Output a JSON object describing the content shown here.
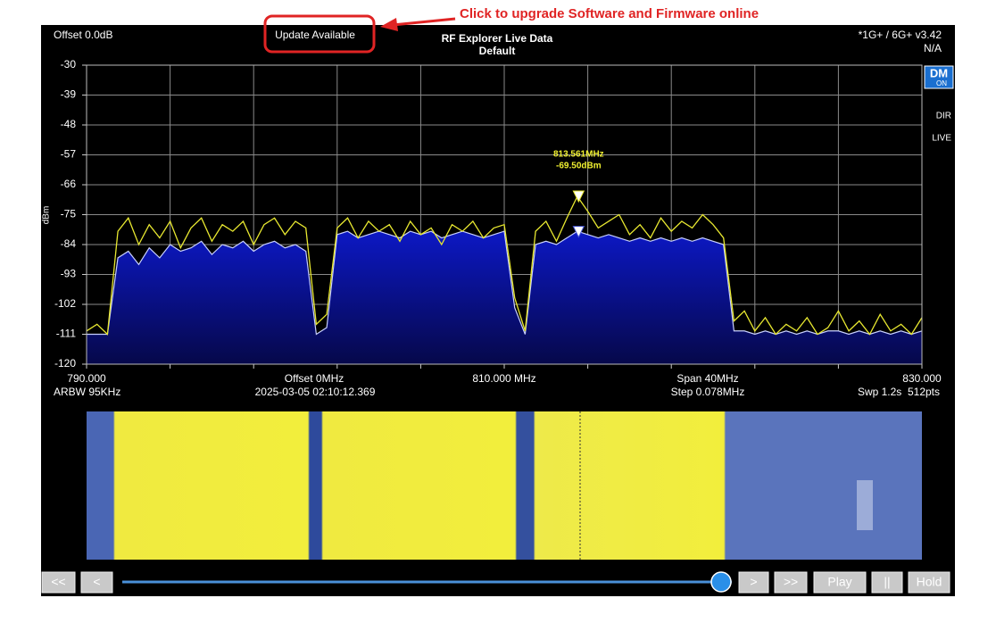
{
  "annotation": "Click to upgrade Software and Firmware online",
  "header": {
    "offset": "Offset 0.0dB",
    "update_button": "Update Available",
    "title": "RF Explorer Live Data",
    "subtitle": "Default",
    "version": "*1G+ / 6G+ v3.42",
    "status": "N/A"
  },
  "side_indicators": {
    "dm_icon": [
      "DM",
      "ON"
    ],
    "dir": "DIR",
    "live": "LIVE"
  },
  "info": {
    "center_offset": "Offset 0MHz",
    "span": "Span 40MHz",
    "rbw": "ARBW 95KHz",
    "timestamp": "2025-03-05 02:10:12.369",
    "step": "Step 0.078MHz",
    "sweep": "Swp 1.2s  512pts"
  },
  "chart_data": {
    "type": "line",
    "ylabel": "dBm",
    "xlim": [
      790,
      830
    ],
    "ylim": [
      -120,
      -30
    ],
    "yticks": [
      -30,
      -39,
      -48,
      -57,
      -66,
      -75,
      -84,
      -93,
      -102,
      -111,
      -120
    ],
    "xticks": [
      {
        "value": 790,
        "label": "790.000"
      },
      {
        "value": 810,
        "label": "810.000 MHz"
      },
      {
        "value": 830,
        "label": "830.000"
      }
    ],
    "xgrid": [
      790,
      794,
      798,
      802,
      806,
      810,
      814,
      818,
      822,
      826,
      830
    ],
    "grid": true,
    "x": [
      790,
      790.5,
      791,
      791.5,
      792,
      792.5,
      793,
      793.5,
      794,
      794.5,
      795,
      795.5,
      796,
      796.5,
      797,
      797.5,
      798,
      798.5,
      799,
      799.5,
      800,
      800.5,
      801,
      801.5,
      802,
      802.5,
      803,
      803.5,
      804,
      804.5,
      805,
      805.5,
      806,
      806.5,
      807,
      807.5,
      808,
      808.5,
      809,
      809.5,
      810,
      810.5,
      811,
      811.5,
      812,
      812.5,
      813,
      813.5,
      814,
      814.5,
      815,
      815.5,
      816,
      816.5,
      817,
      817.5,
      818,
      818.5,
      819,
      819.5,
      820,
      820.5,
      821,
      821.5,
      822,
      822.5,
      823,
      823.5,
      824,
      824.5,
      825,
      825.5,
      826,
      826.5,
      827,
      827.5,
      828,
      828.5,
      829,
      829.5,
      830
    ],
    "series": [
      {
        "kind": "area",
        "color": "#0c18c4",
        "values": [
          -111,
          -111,
          -111,
          -88,
          -86,
          -90,
          -85,
          -88,
          -84,
          -86,
          -85,
          -83,
          -87,
          -84,
          -85,
          -83,
          -86,
          -84,
          -83,
          -85,
          -84,
          -86,
          -111,
          -109,
          -81,
          -80,
          -82,
          -81,
          -80,
          -81,
          -82,
          -80,
          -81,
          -80,
          -82,
          -81,
          -80,
          -81,
          -82,
          -81,
          -80,
          -103,
          -111,
          -84,
          -83,
          -84,
          -82,
          -80,
          -81,
          -82,
          -81,
          -82,
          -83,
          -82,
          -83,
          -82,
          -83,
          -82,
          -83,
          -82,
          -83,
          -84,
          -110,
          -110,
          -111,
          -110,
          -111,
          -110,
          -111,
          -110,
          -111,
          -110,
          -110,
          -111,
          -110,
          -111,
          -110,
          -111,
          -110,
          -111,
          -110
        ]
      },
      {
        "kind": "line",
        "color": "#e8e830",
        "values": [
          -110,
          -108,
          -111,
          -80,
          -76,
          -84,
          -78,
          -82,
          -77,
          -85,
          -79,
          -76,
          -83,
          -78,
          -80,
          -77,
          -84,
          -78,
          -76,
          -81,
          -77,
          -79,
          -108,
          -105,
          -79,
          -76,
          -82,
          -77,
          -80,
          -78,
          -83,
          -77,
          -81,
          -79,
          -84,
          -78,
          -80,
          -77,
          -82,
          -79,
          -78,
          -100,
          -110,
          -80,
          -77,
          -83,
          -76,
          -69.5,
          -74,
          -79,
          -77,
          -75,
          -81,
          -78,
          -82,
          -76,
          -80,
          -77,
          -79,
          -75,
          -78,
          -82,
          -107,
          -104,
          -110,
          -106,
          -111,
          -108,
          -110,
          -106,
          -111,
          -109,
          -104,
          -110,
          -107,
          -111,
          -105,
          -110,
          -108,
          -111,
          -106
        ]
      }
    ],
    "marker": {
      "x": 813.561,
      "value": -69.5,
      "x_label": "813.561MHz",
      "value_label": "-69.50dBm"
    }
  },
  "controls": {
    "buttons": [
      "<<",
      "<",
      ">",
      ">>",
      "Play",
      "||",
      "Hold"
    ]
  }
}
